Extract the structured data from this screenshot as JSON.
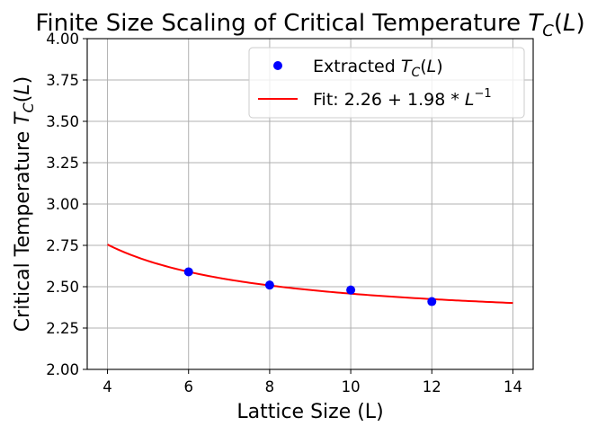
{
  "chart_data": {
    "type": "scatter",
    "title": "Finite Size Scaling of Critical Temperature T_C(L)",
    "xlabel": "Lattice Size (L)",
    "ylabel": "Critical Temperature T_C(L)",
    "xlim": [
      3.5,
      14.5
    ],
    "ylim": [
      2.0,
      4.0
    ],
    "xticks": [
      4,
      6,
      8,
      10,
      12,
      14
    ],
    "yticks": [
      2.0,
      2.25,
      2.5,
      2.75,
      3.0,
      3.25,
      3.5,
      3.75,
      4.0
    ],
    "xtick_labels": [
      "4",
      "6",
      "8",
      "10",
      "12",
      "14"
    ],
    "ytick_labels": [
      "2.00",
      "2.25",
      "2.50",
      "2.75",
      "3.00",
      "3.25",
      "3.50",
      "3.75",
      "4.00"
    ],
    "grid": true,
    "legend_position": "top-right",
    "series": [
      {
        "name": "Extracted T_C(L)",
        "kind": "scatter",
        "color": "#0000ff",
        "x": [
          6,
          8,
          10,
          12
        ],
        "y": [
          2.59,
          2.51,
          2.48,
          2.41
        ]
      },
      {
        "name": "Fit: 2.26 + 1.98 * L^-1",
        "kind": "line",
        "color": "#ff0000",
        "fit": {
          "a": 2.26,
          "b": 1.98
        },
        "x_range": [
          4,
          14
        ]
      }
    ]
  }
}
